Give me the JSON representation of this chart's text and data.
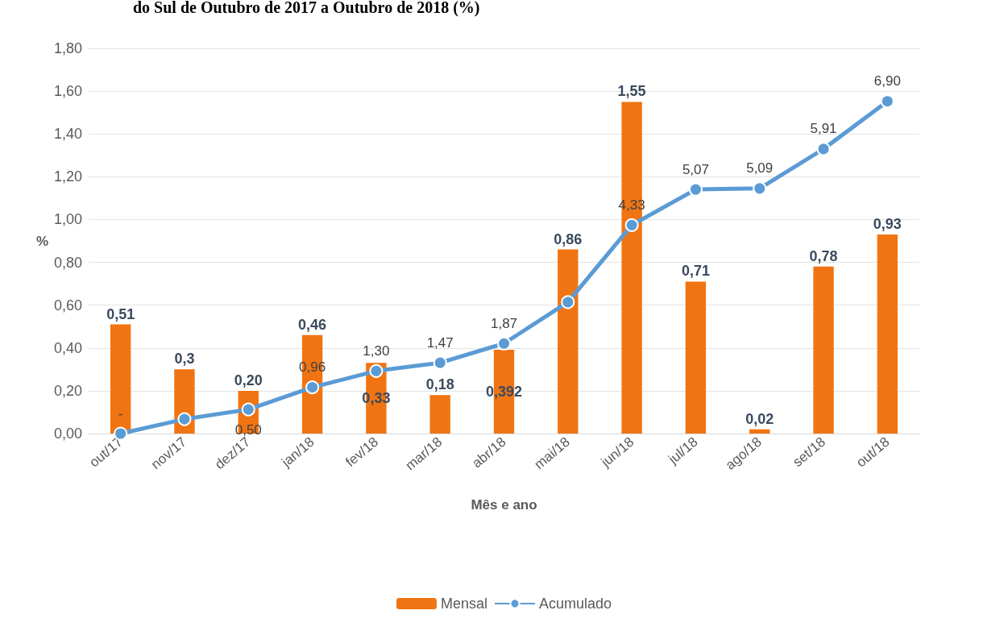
{
  "chart_data": {
    "type": "bar",
    "title": "do Sul de Outubro de 2017 a Outubro de 2018 (%)",
    "xlabel": "Mês e ano",
    "ylabel": "%",
    "categories": [
      "out/17",
      "nov/17",
      "dez/17",
      "jan/18",
      "fev/18",
      "mar/18",
      "abr/18",
      "mai/18",
      "jun/18",
      "jul/18",
      "ago/18",
      "set/18",
      "out/18"
    ],
    "series": [
      {
        "name": "Mensal",
        "color": "#f07412",
        "values": [
          0.51,
          0.3,
          0.2,
          0.46,
          0.33,
          0.18,
          0.392,
          0.86,
          1.55,
          0.71,
          0.02,
          0.78,
          0.93
        ],
        "value_labels": [
          "0,51",
          "0,3",
          "0,20",
          "0,46",
          "0,33",
          "0,18",
          "0,392",
          "0,86",
          "1,55",
          "0,71",
          "0,02",
          "0,78",
          "0,93"
        ]
      },
      {
        "name": "Acumulado",
        "type": "line",
        "axis": "y2",
        "color": "#5b9bd5",
        "marker": "circle",
        "values": [
          0,
          0.3,
          0.5,
          0.96,
          1.3,
          1.47,
          1.87,
          2.73,
          4.33,
          5.07,
          5.09,
          5.91,
          6.9
        ],
        "value_labels": [
          "-",
          null,
          "0,50",
          "0,96",
          "1,30",
          "1,47",
          "1,87",
          null,
          "4,33",
          "5,07",
          "5,09",
          "5,91",
          "6,90"
        ]
      }
    ],
    "ylim": [
      0,
      1.8
    ],
    "yticks": [
      {
        "value": 0,
        "label": "0,00"
      },
      {
        "value": 0.2,
        "label": "0,20"
      },
      {
        "value": 0.4,
        "label": "0,40"
      },
      {
        "value": 0.6,
        "label": "0,60"
      },
      {
        "value": 0.8,
        "label": "0,80"
      },
      {
        "value": 1,
        "label": "1,00"
      },
      {
        "value": 1.2,
        "label": "1,20"
      },
      {
        "value": 1.4,
        "label": "1,40"
      },
      {
        "value": 1.6,
        "label": "1,60"
      },
      {
        "value": 1.8,
        "label": "1,80"
      }
    ],
    "y2lim": [
      0,
      8
    ],
    "tick_labels": [
      "x",
      "y"
    ],
    "grid": "y",
    "legend": "bottom"
  }
}
